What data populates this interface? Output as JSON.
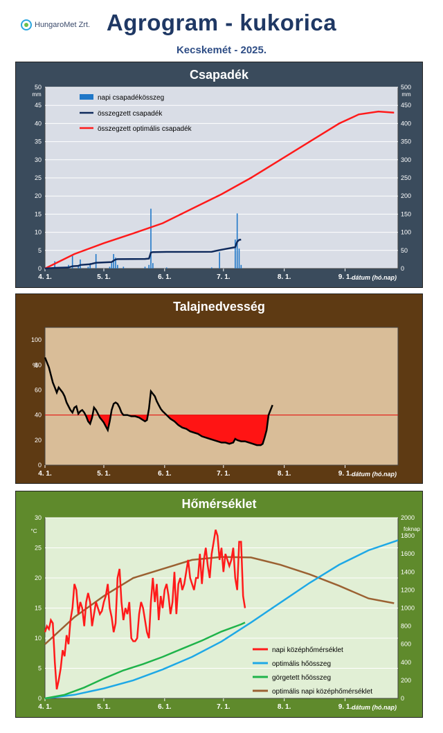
{
  "header": {
    "logo_text": "HungaroMet Zrt.",
    "title": "Agrogram - kukorica",
    "subtitle": "Kecskemét - 2025."
  },
  "colors": {
    "precip_bg": "#3a4b5c",
    "soil_bg": "#5e3a13",
    "temp_bg": "#5f8a2c",
    "precip_plot": "#d9dde6",
    "soil_plot": "#d9bd98",
    "temp_plot": "#e1efd5",
    "daily_bar": "#1f77c8",
    "cum_line": "#0f2a5c",
    "optimal": "#ff1a1a",
    "optimal_heat": "#1ea8e6",
    "rolling_heat": "#1fb34a",
    "optimal_daily": "#9b6132"
  },
  "x_axis": {
    "tick_labels": [
      "4. 1.",
      "5. 1.",
      "6. 1.",
      "7. 1.",
      "8. 1.",
      "9. 1."
    ],
    "label": "dátum (hó.nap)"
  },
  "chart_data": [
    {
      "type": "bar+line",
      "title": "Csapadék",
      "ylabel_left": "mm",
      "ylabel_right": "mm",
      "ylim_left": [
        0,
        50
      ],
      "yticks_left": [
        "0",
        "5",
        "10",
        "15",
        "20",
        "25",
        "30",
        "35",
        "40",
        "45",
        "50"
      ],
      "ylim_right": [
        0,
        500
      ],
      "yticks_right": [
        "0",
        "50",
        "100",
        "150",
        "200",
        "250",
        "300",
        "350",
        "400",
        "450",
        "500"
      ],
      "xlim_days": [
        0,
        180
      ],
      "legend": [
        "napi csapadékösszeg",
        "összegzett csapadék",
        "összegzett optimális csapadék"
      ],
      "daily_precip": [
        [
          5,
          2
        ],
        [
          12,
          1
        ],
        [
          14,
          3.5
        ],
        [
          17,
          1
        ],
        [
          18,
          2.5
        ],
        [
          22,
          0.5
        ],
        [
          23,
          1.5
        ],
        [
          26,
          4
        ],
        [
          33,
          0.5
        ],
        [
          34,
          1.5
        ],
        [
          35,
          4
        ],
        [
          36,
          3
        ],
        [
          37,
          1
        ],
        [
          40,
          0.5
        ],
        [
          51,
          0.5
        ],
        [
          53,
          1
        ],
        [
          54,
          16.5
        ],
        [
          55,
          1.5
        ],
        [
          62,
          0.3
        ],
        [
          85,
          0.3
        ],
        [
          89,
          4.5
        ],
        [
          97,
          8
        ],
        [
          98,
          15.2
        ],
        [
          99,
          5.5
        ],
        [
          100,
          1
        ]
      ],
      "cumulative": [
        [
          0,
          0
        ],
        [
          5,
          2
        ],
        [
          12,
          3
        ],
        [
          14,
          6.5
        ],
        [
          17,
          7.5
        ],
        [
          18,
          10
        ],
        [
          23,
          12
        ],
        [
          26,
          16
        ],
        [
          34,
          18
        ],
        [
          35,
          22
        ],
        [
          36,
          25
        ],
        [
          37,
          26
        ],
        [
          51,
          26.5
        ],
        [
          53,
          27.5
        ],
        [
          54,
          44
        ],
        [
          55,
          45.5
        ],
        [
          62,
          46
        ],
        [
          85,
          46.3
        ],
        [
          89,
          51
        ],
        [
          97,
          59
        ],
        [
          98,
          74
        ],
        [
          99,
          79
        ],
        [
          100,
          80
        ]
      ],
      "optimal_cumulative": [
        [
          0,
          0
        ],
        [
          15,
          40
        ],
        [
          30,
          70
        ],
        [
          45,
          97
        ],
        [
          60,
          125
        ],
        [
          75,
          165
        ],
        [
          90,
          205
        ],
        [
          105,
          250
        ],
        [
          120,
          300
        ],
        [
          135,
          350
        ],
        [
          150,
          400
        ],
        [
          160,
          425
        ],
        [
          170,
          433
        ],
        [
          178,
          430
        ]
      ]
    },
    {
      "type": "line",
      "title": "Talajnedvesség",
      "ylabel": "%",
      "ylim": [
        0,
        110
      ],
      "yticks": [
        "0",
        "20",
        "40",
        "60",
        "80",
        "100"
      ],
      "threshold": 40,
      "xlim_days": [
        0,
        180
      ],
      "soil_moisture": [
        [
          0,
          86
        ],
        [
          2,
          78
        ],
        [
          4,
          66
        ],
        [
          5,
          62
        ],
        [
          6,
          58
        ],
        [
          7,
          62
        ],
        [
          9,
          58
        ],
        [
          10,
          55
        ],
        [
          11,
          50
        ],
        [
          12,
          47
        ],
        [
          13,
          44
        ],
        [
          14,
          42
        ],
        [
          15,
          46
        ],
        [
          16,
          47
        ],
        [
          17,
          41
        ],
        [
          18,
          43
        ],
        [
          19,
          44
        ],
        [
          20,
          42
        ],
        [
          21,
          39
        ],
        [
          22,
          35
        ],
        [
          23,
          33
        ],
        [
          24,
          38
        ],
        [
          25,
          46
        ],
        [
          26,
          44
        ],
        [
          27,
          41
        ],
        [
          28,
          38
        ],
        [
          29,
          36
        ],
        [
          30,
          34
        ],
        [
          31,
          31
        ],
        [
          32,
          28
        ],
        [
          33,
          35
        ],
        [
          34,
          44
        ],
        [
          35,
          49
        ],
        [
          36,
          50
        ],
        [
          37,
          49
        ],
        [
          38,
          46
        ],
        [
          39,
          42
        ],
        [
          40,
          40
        ],
        [
          42,
          40
        ],
        [
          44,
          39
        ],
        [
          46,
          39
        ],
        [
          48,
          38
        ],
        [
          50,
          36
        ],
        [
          51,
          35
        ],
        [
          52,
          36
        ],
        [
          53,
          45
        ],
        [
          54,
          59
        ],
        [
          55,
          57
        ],
        [
          56,
          55
        ],
        [
          57,
          51
        ],
        [
          58,
          48
        ],
        [
          59,
          45
        ],
        [
          60,
          43
        ],
        [
          62,
          40
        ],
        [
          64,
          37
        ],
        [
          66,
          35
        ],
        [
          68,
          32
        ],
        [
          70,
          30
        ],
        [
          72,
          29
        ],
        [
          74,
          27
        ],
        [
          76,
          26
        ],
        [
          78,
          25
        ],
        [
          80,
          23
        ],
        [
          82,
          22
        ],
        [
          84,
          21
        ],
        [
          86,
          20
        ],
        [
          88,
          19
        ],
        [
          90,
          18
        ],
        [
          92,
          18
        ],
        [
          94,
          17
        ],
        [
          96,
          18
        ],
        [
          97,
          21
        ],
        [
          98,
          20
        ],
        [
          100,
          19
        ],
        [
          102,
          19
        ],
        [
          104,
          18
        ],
        [
          106,
          17
        ],
        [
          108,
          16
        ],
        [
          110,
          16
        ],
        [
          111,
          17
        ],
        [
          112,
          22
        ],
        [
          113,
          28
        ],
        [
          114,
          40
        ],
        [
          115,
          44
        ],
        [
          116,
          48
        ]
      ]
    },
    {
      "type": "line",
      "title": "Hőmérséklet",
      "ylabel_left": "°C",
      "ylabel_right": "foknap",
      "ylim_left": [
        0,
        30
      ],
      "yticks_left": [
        "0",
        "5",
        "10",
        "15",
        "20",
        "25",
        "30"
      ],
      "ylim_right": [
        0,
        2000
      ],
      "yticks_right": [
        "0",
        "200",
        "400",
        "600",
        "800",
        "1000",
        "1200",
        "1400",
        "1600",
        "1800",
        "2000"
      ],
      "xlim_days": [
        0,
        180
      ],
      "legend": [
        "napi középhőmérséklet",
        "optimális hőösszeg",
        "görgetett hőösszeg",
        "optimális napi középhőmérséklet"
      ],
      "daily_mean_temp": [
        [
          0,
          11
        ],
        [
          1,
          12
        ],
        [
          2,
          11.5
        ],
        [
          3,
          13
        ],
        [
          4,
          12.5
        ],
        [
          5,
          6
        ],
        [
          6,
          1.5
        ],
        [
          7,
          3
        ],
        [
          8,
          5
        ],
        [
          9,
          8
        ],
        [
          10,
          7
        ],
        [
          11,
          10.5
        ],
        [
          12,
          9
        ],
        [
          13,
          13
        ],
        [
          14,
          15
        ],
        [
          15,
          19
        ],
        [
          16,
          18
        ],
        [
          17,
          14
        ],
        [
          18,
          16
        ],
        [
          19,
          15
        ],
        [
          20,
          12
        ],
        [
          21,
          16
        ],
        [
          22,
          17.5
        ],
        [
          23,
          16
        ],
        [
          24,
          12
        ],
        [
          25,
          14
        ],
        [
          26,
          16
        ],
        [
          27,
          15
        ],
        [
          28,
          14
        ],
        [
          29,
          14.5
        ],
        [
          30,
          16
        ],
        [
          31,
          17
        ],
        [
          32,
          19
        ],
        [
          33,
          15
        ],
        [
          34,
          13.5
        ],
        [
          35,
          11
        ],
        [
          36,
          12.5
        ],
        [
          37,
          20
        ],
        [
          38,
          21.5
        ],
        [
          39,
          16
        ],
        [
          40,
          13
        ],
        [
          41,
          15
        ],
        [
          42,
          14
        ],
        [
          43,
          16
        ],
        [
          44,
          10
        ],
        [
          45,
          9.5
        ],
        [
          46,
          9.5
        ],
        [
          47,
          10
        ],
        [
          48,
          14
        ],
        [
          49,
          16
        ],
        [
          50,
          15
        ],
        [
          51,
          13
        ],
        [
          52,
          11
        ],
        [
          53,
          10
        ],
        [
          54,
          16
        ],
        [
          55,
          20
        ],
        [
          56,
          16
        ],
        [
          57,
          19
        ],
        [
          58,
          13
        ],
        [
          59,
          17
        ],
        [
          60,
          15
        ],
        [
          61,
          18
        ],
        [
          62,
          19
        ],
        [
          63,
          17
        ],
        [
          64,
          14
        ],
        [
          65,
          16
        ],
        [
          66,
          21
        ],
        [
          67,
          14
        ],
        [
          68,
          19
        ],
        [
          69,
          20
        ],
        [
          70,
          18
        ],
        [
          71,
          19
        ],
        [
          72,
          21
        ],
        [
          73,
          23
        ],
        [
          74,
          20
        ],
        [
          75,
          19
        ],
        [
          76,
          18
        ],
        [
          77,
          20
        ],
        [
          78,
          20
        ],
        [
          79,
          24
        ],
        [
          80,
          19
        ],
        [
          81,
          23
        ],
        [
          82,
          25
        ],
        [
          83,
          22
        ],
        [
          84,
          20
        ],
        [
          85,
          24
        ],
        [
          86,
          26
        ],
        [
          87,
          28
        ],
        [
          88,
          27
        ],
        [
          89,
          23
        ],
        [
          90,
          25
        ],
        [
          91,
          21
        ],
        [
          92,
          24
        ],
        [
          93,
          23
        ],
        [
          94,
          22
        ],
        [
          95,
          23
        ],
        [
          96,
          25
        ],
        [
          97,
          20
        ],
        [
          98,
          18
        ],
        [
          99,
          26
        ],
        [
          100,
          26
        ],
        [
          101,
          17
        ],
        [
          102,
          15
        ]
      ],
      "optimal_heat_sum": [
        [
          0,
          0
        ],
        [
          15,
          40
        ],
        [
          30,
          110
        ],
        [
          45,
          200
        ],
        [
          60,
          320
        ],
        [
          75,
          460
        ],
        [
          90,
          630
        ],
        [
          105,
          840
        ],
        [
          120,
          1060
        ],
        [
          135,
          1280
        ],
        [
          150,
          1480
        ],
        [
          165,
          1640
        ],
        [
          180,
          1750
        ]
      ],
      "rolling_heat_sum": [
        [
          0,
          0
        ],
        [
          10,
          40
        ],
        [
          20,
          120
        ],
        [
          30,
          220
        ],
        [
          40,
          310
        ],
        [
          50,
          380
        ],
        [
          60,
          460
        ],
        [
          70,
          550
        ],
        [
          80,
          640
        ],
        [
          90,
          740
        ],
        [
          100,
          820
        ],
        [
          102,
          840
        ]
      ],
      "optimal_daily_mean": [
        [
          0,
          9
        ],
        [
          15,
          13.5
        ],
        [
          30,
          17
        ],
        [
          45,
          20
        ],
        [
          60,
          21.5
        ],
        [
          75,
          23
        ],
        [
          90,
          23.5
        ],
        [
          105,
          23.4
        ],
        [
          120,
          22.2
        ],
        [
          135,
          20.6
        ],
        [
          150,
          18.7
        ],
        [
          165,
          16.6
        ],
        [
          178,
          15.8
        ]
      ]
    }
  ]
}
